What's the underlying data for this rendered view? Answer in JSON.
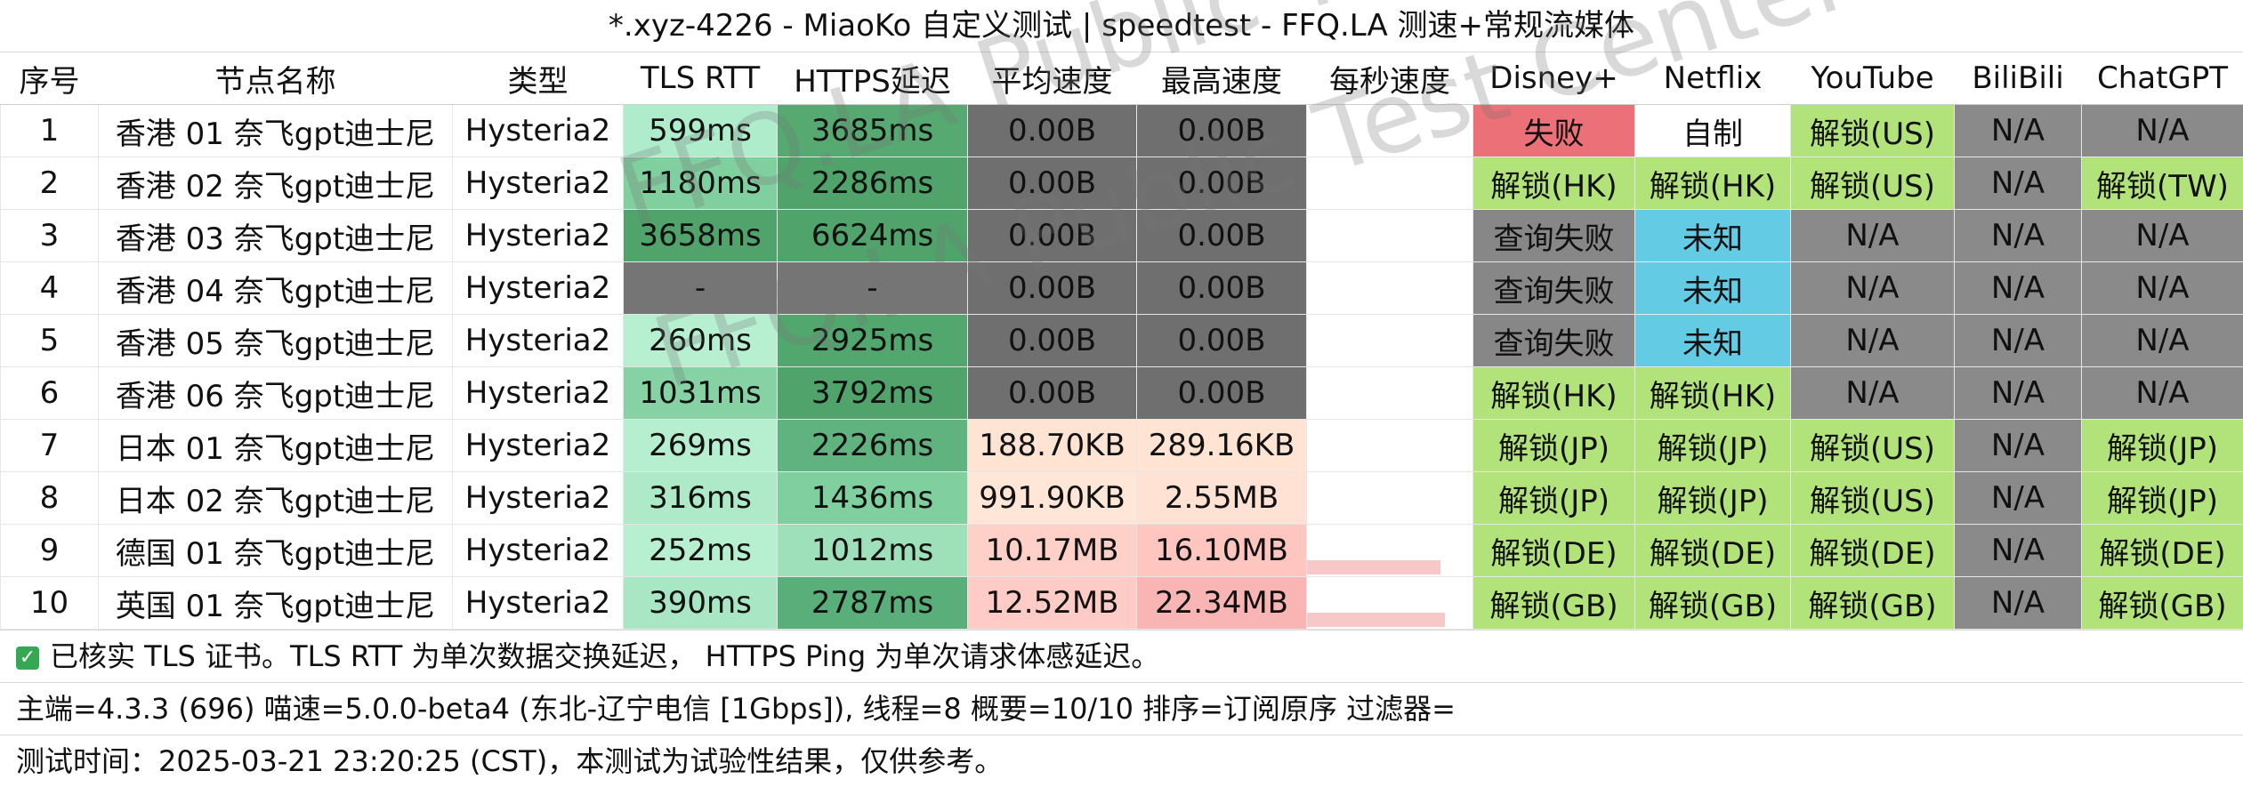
{
  "window": {
    "title": "*.xyz-4226 - MiaoKo 自定义测试 | speedtest - FFQ.LA 测速+常规流媒体"
  },
  "columns": [
    "序号",
    "节点名称",
    "类型",
    "TLS RTT",
    "HTTPS延迟",
    "平均速度",
    "最高速度",
    "每秒速度",
    "Disney+",
    "Netflix",
    "YouTube",
    "BiliBili",
    "ChatGPT"
  ],
  "rows": [
    {
      "idx": "1",
      "name": "香港 01 奈飞gpt迪士尼",
      "type": "Hysteria2",
      "tls": "599ms",
      "https": "3685ms",
      "avg": "0.00B",
      "max": "0.00B",
      "disney": "失败",
      "netflix": "自制",
      "youtube": "解锁(US)",
      "bili": "N/A",
      "chatgpt": "N/A"
    },
    {
      "idx": "2",
      "name": "香港 02 奈飞gpt迪士尼",
      "type": "Hysteria2",
      "tls": "1180ms",
      "https": "2286ms",
      "avg": "0.00B",
      "max": "0.00B",
      "disney": "解锁(HK)",
      "netflix": "解锁(HK)",
      "youtube": "解锁(US)",
      "bili": "N/A",
      "chatgpt": "解锁(TW)"
    },
    {
      "idx": "3",
      "name": "香港 03 奈飞gpt迪士尼",
      "type": "Hysteria2",
      "tls": "3658ms",
      "https": "6624ms",
      "avg": "0.00B",
      "max": "0.00B",
      "disney": "查询失败",
      "netflix": "未知",
      "youtube": "N/A",
      "bili": "N/A",
      "chatgpt": "N/A"
    },
    {
      "idx": "4",
      "name": "香港 04 奈飞gpt迪士尼",
      "type": "Hysteria2",
      "tls": "-",
      "https": "-",
      "avg": "0.00B",
      "max": "0.00B",
      "disney": "查询失败",
      "netflix": "未知",
      "youtube": "N/A",
      "bili": "N/A",
      "chatgpt": "N/A"
    },
    {
      "idx": "5",
      "name": "香港 05 奈飞gpt迪士尼",
      "type": "Hysteria2",
      "tls": "260ms",
      "https": "2925ms",
      "avg": "0.00B",
      "max": "0.00B",
      "disney": "查询失败",
      "netflix": "未知",
      "youtube": "N/A",
      "bili": "N/A",
      "chatgpt": "N/A"
    },
    {
      "idx": "6",
      "name": "香港 06 奈飞gpt迪士尼",
      "type": "Hysteria2",
      "tls": "1031ms",
      "https": "3792ms",
      "avg": "0.00B",
      "max": "0.00B",
      "disney": "解锁(HK)",
      "netflix": "解锁(HK)",
      "youtube": "N/A",
      "bili": "N/A",
      "chatgpt": "N/A"
    },
    {
      "idx": "7",
      "name": "日本 01 奈飞gpt迪士尼",
      "type": "Hysteria2",
      "tls": "269ms",
      "https": "2226ms",
      "avg": "188.70KB",
      "max": "289.16KB",
      "disney": "解锁(JP)",
      "netflix": "解锁(JP)",
      "youtube": "解锁(US)",
      "bili": "N/A",
      "chatgpt": "解锁(JP)"
    },
    {
      "idx": "8",
      "name": "日本 02 奈飞gpt迪士尼",
      "type": "Hysteria2",
      "tls": "316ms",
      "https": "1436ms",
      "avg": "991.90KB",
      "max": "2.55MB",
      "disney": "解锁(JP)",
      "netflix": "解锁(JP)",
      "youtube": "解锁(US)",
      "bili": "N/A",
      "chatgpt": "解锁(JP)"
    },
    {
      "idx": "9",
      "name": "德国 01 奈飞gpt迪士尼",
      "type": "Hysteria2",
      "tls": "252ms",
      "https": "1012ms",
      "avg": "10.17MB",
      "max": "16.10MB",
      "disney": "解锁(DE)",
      "netflix": "解锁(DE)",
      "youtube": "解锁(DE)",
      "bili": "N/A",
      "chatgpt": "解锁(DE)"
    },
    {
      "idx": "10",
      "name": "英国 01 奈飞gpt迪士尼",
      "type": "Hysteria2",
      "tls": "390ms",
      "https": "2787ms",
      "avg": "12.52MB",
      "max": "22.34MB",
      "disney": "解锁(GB)",
      "netflix": "解锁(GB)",
      "youtube": "解锁(GB)",
      "bili": "N/A",
      "chatgpt": "解锁(GB)"
    }
  ],
  "footer": {
    "line1": "已核实 TLS 证书。TLS RTT 为单次数据交换延迟， HTTPS Ping 为单次请求体感延迟。",
    "line2": "主端=4.3.3 (696) 喵速=5.0.0-beta4 (东北-辽宁电信 [1Gbps]), 线程=8 概要=10/10 排序=订阅原序 过滤器=",
    "line3": "测试时间：2025-03-21 23:20:25 (CST)，本测试为试验性结果，仅供参考。"
  },
  "watermark": "FFQ.LA Public Test Center",
  "colors": {
    "latency_fast": "#aeeccc",
    "latency_mid": "#7fcf9f",
    "latency_slow": "#56aa71",
    "dark_gray": "#6f6f6f",
    "speed_low": "#ffe3d3",
    "speed_mid": "#ffd0c8",
    "speed_high": "#f9b4b4",
    "fail": "#ec7077",
    "unlock": "#b2e37a",
    "unknown": "#63cbe3",
    "na": "#8a8a8a"
  }
}
